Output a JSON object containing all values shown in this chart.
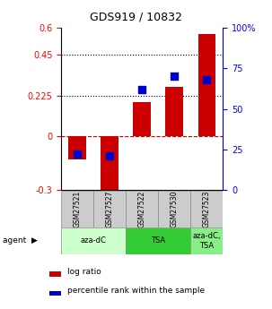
{
  "title": "GDS919 / 10832",
  "samples": [
    "GSM27521",
    "GSM27527",
    "GSM27522",
    "GSM27530",
    "GSM27523"
  ],
  "log_ratios": [
    -0.13,
    -0.325,
    0.19,
    0.27,
    0.565
  ],
  "percentile_ranks": [
    22,
    21,
    62,
    70,
    68
  ],
  "bar_color": "#cc0000",
  "dot_color": "#0000cc",
  "ylim_left": [
    -0.3,
    0.6
  ],
  "ylim_right": [
    0,
    100
  ],
  "yticks_left": [
    -0.3,
    0,
    0.225,
    0.45,
    0.6
  ],
  "yticks_right": [
    0,
    25,
    50,
    75,
    100
  ],
  "hlines": [
    0.225,
    0.45
  ],
  "hline_zero_color": "#cc0000",
  "bar_width": 0.55,
  "dot_size": 40,
  "agent_light_green": "#ccffcc",
  "agent_green": "#44dd44",
  "agent_dark_green": "#88ff88",
  "sample_box_color": "#cccccc",
  "group_extents": [
    [
      -0.5,
      1.5,
      "aza-dC",
      "#ccffcc"
    ],
    [
      1.5,
      3.5,
      "TSA",
      "#33cc33"
    ],
    [
      3.5,
      4.5,
      "aza-dC,\nTSA",
      "#88ee88"
    ]
  ]
}
